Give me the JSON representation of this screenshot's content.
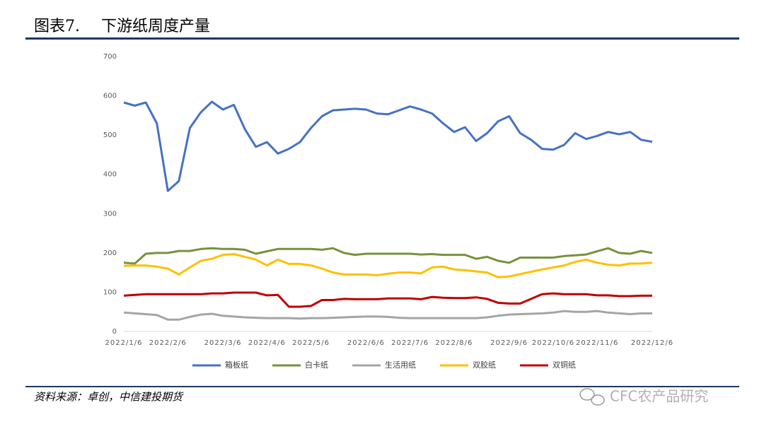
{
  "figure_label": "图表7.",
  "source": "资料来源：卓创，中信建投期货",
  "watermark": "CFC农产品研究",
  "chart_data": {
    "type": "line",
    "title": "下游纸周度产量",
    "categories": [
      "2022/1/6",
      null,
      null,
      null,
      "2022/2/6",
      null,
      null,
      null,
      null,
      "2022/3/6",
      null,
      null,
      null,
      "2022/4/6",
      null,
      null,
      null,
      "2022/5/6",
      null,
      null,
      null,
      null,
      "2022/6/6",
      null,
      null,
      null,
      "2022/7/6",
      null,
      null,
      null,
      "2022/8/6",
      null,
      null,
      null,
      null,
      "2022/9/6",
      null,
      null,
      null,
      "2022/10/6",
      null,
      null,
      null,
      "2022/11/6",
      null,
      null,
      null,
      null,
      "2022/12/6"
    ],
    "series": [
      {
        "name": "箱板纸",
        "color": "#4472c4",
        "values": [
          583,
          575,
          583,
          530,
          358,
          383,
          518,
          558,
          585,
          565,
          577,
          515,
          470,
          482,
          453,
          465,
          482,
          518,
          548,
          563,
          565,
          567,
          565,
          555,
          553,
          563,
          573,
          565,
          555,
          530,
          508,
          520,
          485,
          505,
          535,
          548,
          505,
          488,
          465,
          463,
          475,
          505,
          490,
          498,
          508,
          502,
          508,
          488,
          483
        ]
      },
      {
        "name": "白卡纸",
        "color": "#76923c",
        "values": [
          175,
          173,
          198,
          200,
          200,
          205,
          205,
          210,
          212,
          210,
          210,
          208,
          198,
          204,
          210,
          210,
          210,
          210,
          208,
          212,
          200,
          195,
          198,
          198,
          198,
          198,
          198,
          196,
          197,
          195,
          195,
          195,
          185,
          190,
          180,
          175,
          188,
          188,
          188,
          188,
          192,
          194,
          196,
          204,
          212,
          200,
          198,
          205,
          200
        ]
      },
      {
        "name": "生活用纸",
        "color": "#a5a5a5",
        "values": [
          48,
          46,
          44,
          42,
          30,
          30,
          37,
          43,
          45,
          40,
          38,
          36,
          35,
          34,
          34,
          34,
          33,
          34,
          34,
          35,
          36,
          37,
          38,
          38,
          37,
          35,
          34,
          34,
          34,
          34,
          34,
          34,
          34,
          36,
          40,
          43,
          44,
          45,
          46,
          48,
          52,
          50,
          50,
          52,
          48,
          46,
          44,
          46,
          46
        ]
      },
      {
        "name": "双胶纸",
        "color": "#ffc000",
        "values": [
          167,
          168,
          168,
          165,
          160,
          145,
          163,
          180,
          185,
          195,
          197,
          190,
          183,
          168,
          183,
          172,
          172,
          168,
          160,
          150,
          145,
          145,
          145,
          143,
          147,
          150,
          150,
          148,
          163,
          165,
          158,
          156,
          153,
          150,
          138,
          140,
          146,
          152,
          158,
          163,
          168,
          177,
          183,
          175,
          170,
          168,
          173,
          173,
          175
        ]
      },
      {
        "name": "双铜纸",
        "color": "#c00000",
        "values": [
          91,
          93,
          95,
          95,
          95,
          95,
          95,
          95,
          97,
          97,
          99,
          99,
          99,
          92,
          93,
          63,
          63,
          65,
          80,
          80,
          83,
          82,
          82,
          82,
          84,
          84,
          84,
          82,
          88,
          86,
          85,
          85,
          87,
          83,
          73,
          71,
          71,
          83,
          95,
          97,
          95,
          95,
          95,
          92,
          92,
          90,
          90,
          91,
          91
        ]
      }
    ],
    "ylim": [
      0,
      700
    ],
    "yticks": [
      0,
      100,
      200,
      300,
      400,
      500,
      600,
      700
    ],
    "legend": "bottom"
  }
}
